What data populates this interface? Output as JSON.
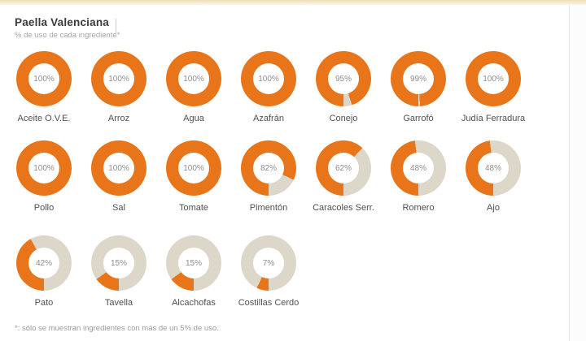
{
  "header": {
    "title": "Paella Valenciana",
    "subtitle": "% de uso de cada ingrediente*"
  },
  "footer": {
    "note": "*: sólo se muestran ingredientes con más de un 5% de uso."
  },
  "chart_data": {
    "type": "pie",
    "subtype": "donut-grid",
    "title": "Paella Valenciana",
    "subtitle": "% de uso de cada ingrediente*",
    "unit": "%",
    "value_range": [
      0,
      100
    ],
    "start_angle_deg": 180,
    "direction": "clockwise",
    "columns_per_row": 7,
    "colors": {
      "value": "#e8751a",
      "remainder": "#dcd7c8",
      "percent_label": "#8d8d8d",
      "ingredient_label": "#505050",
      "top_accent": "#ecdebb"
    },
    "ingredients": [
      {
        "name": "Aceite O.V.E.",
        "value": 100
      },
      {
        "name": "Arroz",
        "value": 100
      },
      {
        "name": "Agua",
        "value": 100
      },
      {
        "name": "Azafrán",
        "value": 100
      },
      {
        "name": "Conejo",
        "value": 95
      },
      {
        "name": "Garrofó",
        "value": 99
      },
      {
        "name": "Judía Ferradura",
        "value": 100
      },
      {
        "name": "Pollo",
        "value": 100
      },
      {
        "name": "Sal",
        "value": 100
      },
      {
        "name": "Tomate",
        "value": 100
      },
      {
        "name": "Pimentón",
        "value": 82
      },
      {
        "name": "Caracoles Serr.",
        "value": 62
      },
      {
        "name": "Romero",
        "value": 48
      },
      {
        "name": "Ajo",
        "value": 48
      },
      {
        "name": "Pato",
        "value": 42
      },
      {
        "name": "Tavella",
        "value": 15
      },
      {
        "name": "Alcachofas",
        "value": 15
      },
      {
        "name": "Costillas Cerdo",
        "value": 7
      }
    ]
  }
}
